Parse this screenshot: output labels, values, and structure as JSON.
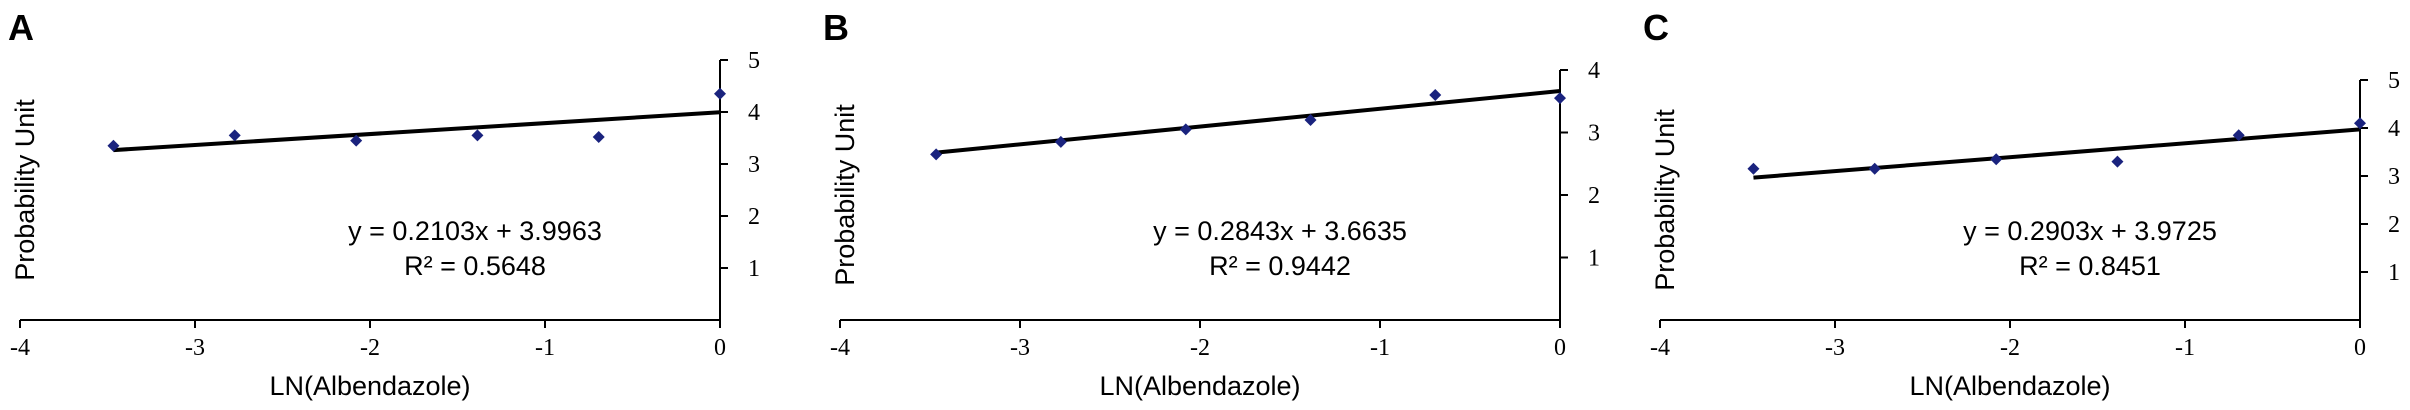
{
  "chart_data": [
    {
      "type": "scatter",
      "panel_label": "A",
      "xlabel": "LN(Albendazole)",
      "ylabel": "Probability Unit",
      "xlim": [
        -4,
        0
      ],
      "ylim": [
        0,
        5
      ],
      "x_ticks": [
        "-4",
        "-3",
        "-2",
        "-1",
        "0"
      ],
      "y_ticks": [
        "1",
        "2",
        "3",
        "4",
        "5"
      ],
      "x": [
        -3.466,
        -2.773,
        -2.079,
        -1.386,
        -0.693,
        0
      ],
      "y": [
        3.35,
        3.55,
        3.45,
        3.55,
        3.52,
        4.35
      ],
      "trendline": {
        "slope": 0.2103,
        "intercept": 3.9963
      },
      "equation": "y = 0.2103x + 3.9963",
      "r2": "R² = 0.5648",
      "marker_color": "#1a237e"
    },
    {
      "type": "scatter",
      "panel_label": "B",
      "xlabel": "LN(Albendazole)",
      "ylabel": "Probability Unit",
      "xlim": [
        -4,
        0
      ],
      "ylim": [
        0,
        4
      ],
      "x_ticks": [
        "-4",
        "-3",
        "-2",
        "-1",
        "0"
      ],
      "y_ticks": [
        "1",
        "2",
        "3",
        "4"
      ],
      "x": [
        -3.466,
        -2.773,
        -2.079,
        -1.386,
        -0.693,
        0
      ],
      "y": [
        2.65,
        2.85,
        3.05,
        3.2,
        3.6,
        3.55
      ],
      "trendline": {
        "slope": 0.2843,
        "intercept": 3.6635
      },
      "equation": "y = 0.2843x + 3.6635",
      "r2": "R² = 0.9442",
      "marker_color": "#1a237e"
    },
    {
      "type": "scatter",
      "panel_label": "C",
      "xlabel": "LN(Albendazole)",
      "ylabel": "Probability Unit",
      "xlim": [
        -4,
        0
      ],
      "ylim": [
        0,
        5
      ],
      "x_ticks": [
        "-4",
        "-3",
        "-2",
        "-1",
        "0"
      ],
      "y_ticks": [
        "1",
        "2",
        "3",
        "4",
        "5"
      ],
      "x": [
        -3.466,
        -2.773,
        -2.079,
        -1.386,
        -0.693,
        0
      ],
      "y": [
        3.15,
        3.15,
        3.35,
        3.3,
        3.85,
        4.1
      ],
      "trendline": {
        "slope": 0.2903,
        "intercept": 3.9725
      },
      "equation": "y = 0.2903x + 3.9725",
      "r2": "R² = 0.8451",
      "marker_color": "#1a237e"
    }
  ]
}
